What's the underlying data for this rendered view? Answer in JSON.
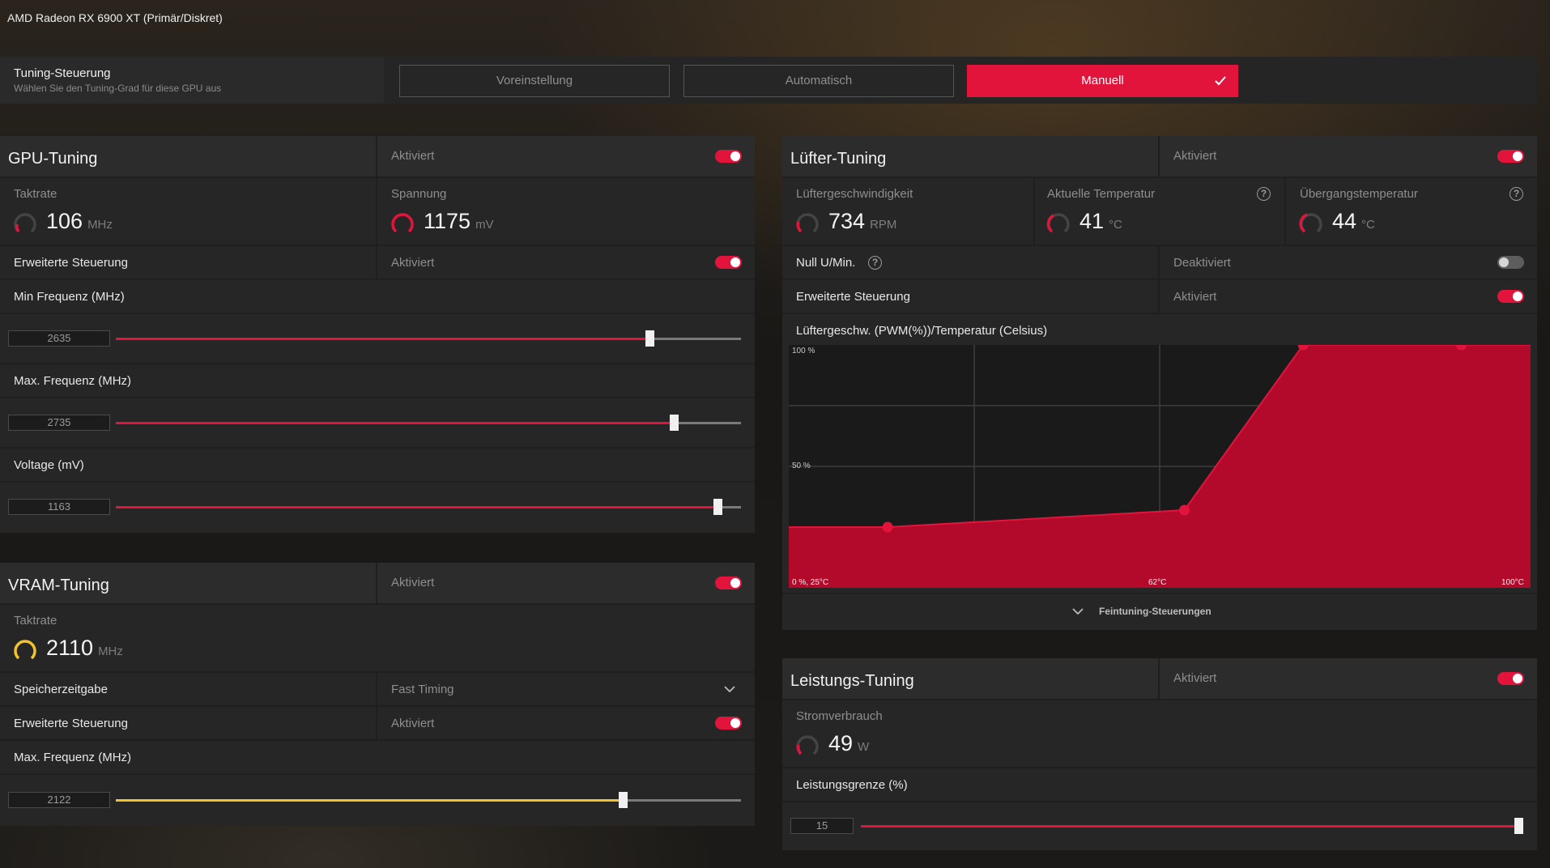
{
  "window_title": "AMD Radeon RX 6900 XT (Primär/Diskret)",
  "tuning_control": {
    "title": "Tuning-Steuerung",
    "subtitle": "Wählen Sie den Tuning-Grad für diese GPU aus",
    "options": [
      "Voreinstellung",
      "Automatisch",
      "Manuell"
    ],
    "selected": "Manuell"
  },
  "gpu_tuning": {
    "title": "GPU-Tuning",
    "status": "Aktiviert",
    "enabled": true,
    "clock_label": "Taktrate",
    "clock_value": "106",
    "clock_unit": "MHz",
    "voltage_label": "Spannung",
    "voltage_value": "1175",
    "voltage_unit": "mV",
    "advanced_label": "Erweiterte Steuerung",
    "advanced_status": "Aktiviert",
    "advanced_enabled": true,
    "min_freq_label": "Min Frequenz (MHz)",
    "min_freq_value": "2635",
    "min_freq_fraction": 0.854,
    "max_freq_label": "Max. Frequenz (MHz)",
    "max_freq_value": "2735",
    "max_freq_fraction": 0.893,
    "voltage_mv_label": "Voltage (mV)",
    "voltage_mv_value": "1163",
    "voltage_mv_fraction": 0.963
  },
  "vram_tuning": {
    "title": "VRAM-Tuning",
    "status": "Aktiviert",
    "enabled": true,
    "clock_label": "Taktrate",
    "clock_value": "2110",
    "clock_unit": "MHz",
    "timing_label": "Speicherzeitgabe",
    "timing_value": "Fast Timing",
    "advanced_label": "Erweiterte Steuerung",
    "advanced_status": "Aktiviert",
    "advanced_enabled": true,
    "max_freq_label": "Max. Frequenz (MHz)",
    "max_freq_value": "2122",
    "max_freq_fraction": 0.811
  },
  "fan_tuning": {
    "title": "Lüfter-Tuning",
    "status": "Aktiviert",
    "enabled": true,
    "fan_speed_label": "Lüftergeschwindigkeit",
    "fan_speed_value": "734",
    "fan_speed_unit": "RPM",
    "current_temp_label": "Aktuelle Temperatur",
    "current_temp_value": "41",
    "current_temp_unit": "°C",
    "junction_temp_label": "Übergangstemperatur",
    "junction_temp_value": "44",
    "junction_temp_unit": "°C",
    "zero_rpm_label": "Null U/Min.",
    "zero_rpm_status": "Deaktiviert",
    "zero_rpm_enabled": false,
    "advanced_label": "Erweiterte Steuerung",
    "advanced_status": "Aktiviert",
    "advanced_enabled": true,
    "curve_title": "Lüftergeschw. (PWM(%))/Temperatur (Celsius)",
    "curve_labels": {
      "y_100": "100 %",
      "y_50": "50 %",
      "origin": "0 %, 25°C",
      "x_mid": "62°C",
      "x_max": "100°C"
    },
    "fine_tune_label": "Feintuning-Steuerungen"
  },
  "chart_data": {
    "type": "area",
    "title": "Lüftergeschw. (PWM(%))/Temperatur (Celsius)",
    "xlabel": "",
    "ylabel": "",
    "xlim": [
      25,
      100
    ],
    "ylim": [
      0,
      100
    ],
    "x": [
      25,
      35,
      65,
      77,
      93,
      100
    ],
    "series": [
      {
        "values": [
          25,
          25,
          32,
          100,
          100,
          100
        ]
      }
    ],
    "grid": true
  },
  "power_tuning": {
    "title": "Leistungs-Tuning",
    "status": "Aktiviert",
    "enabled": true,
    "power_label": "Stromverbrauch",
    "power_value": "49",
    "power_unit": "W",
    "limit_label": "Leistungsgrenze (%)",
    "limit_value": "15",
    "limit_fraction": 1.0
  },
  "colors": {
    "accent": "#e3143c",
    "vram_accent": "#f2c12e",
    "panel": "#262626"
  },
  "icons": [
    "checkmark-icon",
    "help-icon",
    "chevron-down-icon",
    "gauge-icon"
  ]
}
